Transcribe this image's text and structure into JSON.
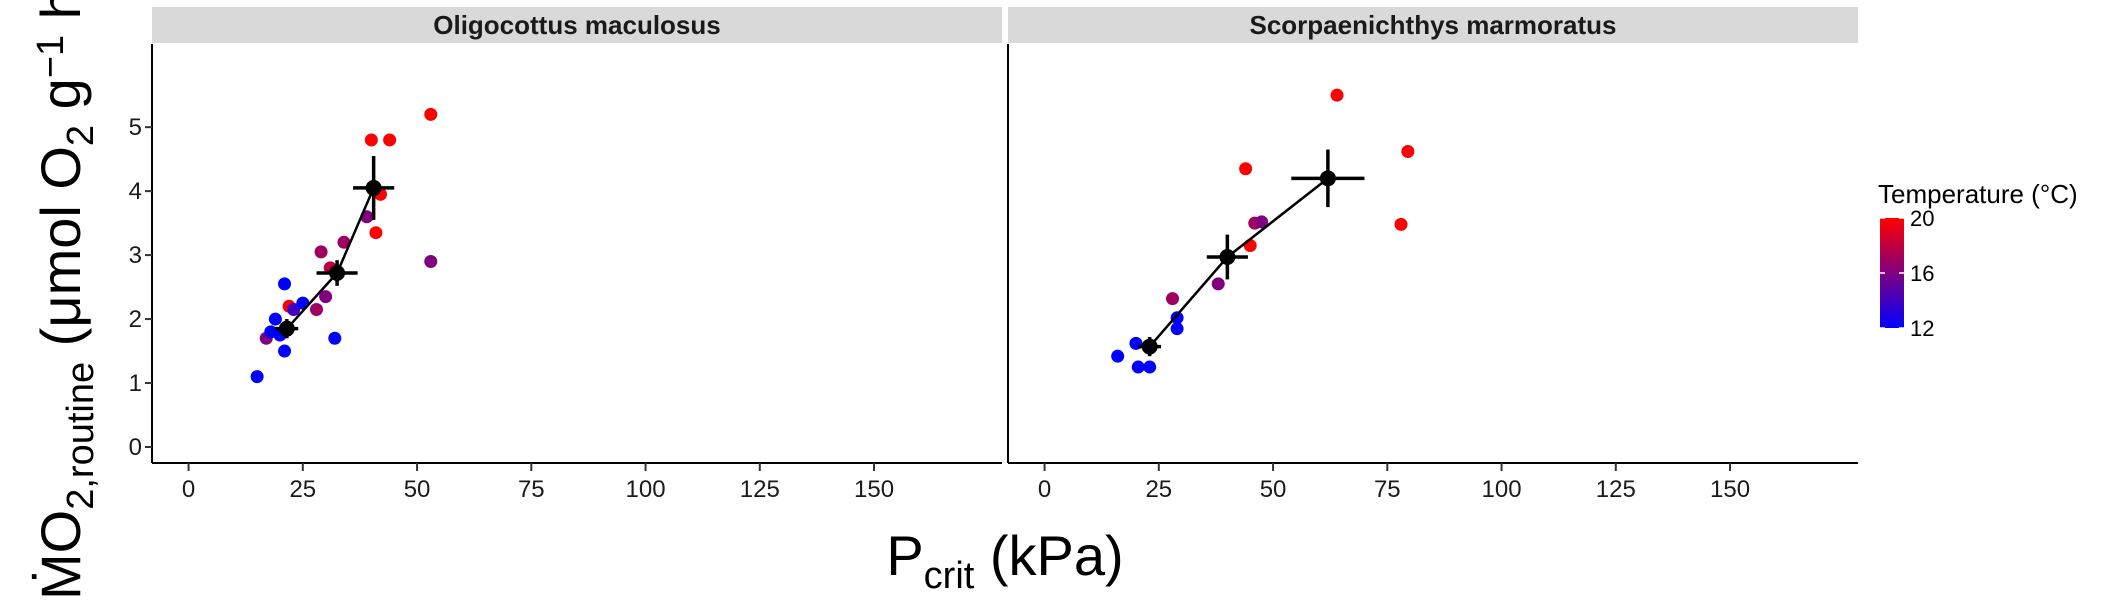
{
  "chart_data": {
    "type": "scatter",
    "x_axis": {
      "label_main": "P",
      "label_sub": "crit",
      "label_unit": " (kPa)",
      "ticks": [
        0,
        25,
        50,
        75,
        100,
        125,
        150
      ],
      "range": [
        -8,
        178
      ]
    },
    "y_axis": {
      "label_prefix": "ṀO",
      "label_sub": "2,routine",
      "label_rest": " (μmol O",
      "label_rest_sub": "2",
      "label_g": " g",
      "label_sup": "−1",
      "label_tail": " h",
      "ticks": [
        0,
        1,
        2,
        3,
        4,
        5
      ],
      "range": [
        -0.25,
        6.3
      ]
    },
    "legend": {
      "title": "Temperature (°C)",
      "min": 12,
      "max": 20,
      "ticks": [
        12,
        16,
        20
      ],
      "color_low": "#0000ff",
      "color_high": "#ff0000"
    },
    "panels": [
      {
        "title": "Oligocottus maculosus",
        "points": [
          {
            "x": 15,
            "y": 1.1,
            "t": 12
          },
          {
            "x": 17,
            "y": 1.7,
            "t": 16
          },
          {
            "x": 18,
            "y": 1.8,
            "t": 12
          },
          {
            "x": 19,
            "y": 2.0,
            "t": 12
          },
          {
            "x": 20,
            "y": 1.75,
            "t": 12
          },
          {
            "x": 21,
            "y": 2.55,
            "t": 12
          },
          {
            "x": 21,
            "y": 1.5,
            "t": 12
          },
          {
            "x": 22,
            "y": 2.2,
            "t": 20
          },
          {
            "x": 23,
            "y": 2.15,
            "t": 14
          },
          {
            "x": 25,
            "y": 2.25,
            "t": 12
          },
          {
            "x": 28,
            "y": 2.15,
            "t": 17
          },
          {
            "x": 29,
            "y": 3.05,
            "t": 17
          },
          {
            "x": 30,
            "y": 2.35,
            "t": 16
          },
          {
            "x": 31,
            "y": 2.8,
            "t": 18
          },
          {
            "x": 32,
            "y": 1.7,
            "t": 12
          },
          {
            "x": 34,
            "y": 3.2,
            "t": 17
          },
          {
            "x": 39,
            "y": 3.6,
            "t": 16
          },
          {
            "x": 40,
            "y": 4.8,
            "t": 20
          },
          {
            "x": 41,
            "y": 3.35,
            "t": 20
          },
          {
            "x": 42,
            "y": 3.95,
            "t": 20
          },
          {
            "x": 44,
            "y": 4.8,
            "t": 20
          },
          {
            "x": 53,
            "y": 2.9,
            "t": 16
          },
          {
            "x": 53,
            "y": 5.2,
            "t": 20
          }
        ],
        "means": [
          {
            "x": 21.5,
            "y": 1.85,
            "xerr": 2.5,
            "yerr": 0.15
          },
          {
            "x": 32.5,
            "y": 2.72,
            "xerr": 4.5,
            "yerr": 0.2
          },
          {
            "x": 40.5,
            "y": 4.05,
            "xerr": 4.5,
            "yerr": 0.5
          }
        ]
      },
      {
        "title": "Scorpaenichthys marmoratus",
        "points": [
          {
            "x": 16,
            "y": 1.42,
            "t": 12
          },
          {
            "x": 20,
            "y": 1.62,
            "t": 12
          },
          {
            "x": 20.5,
            "y": 1.25,
            "t": 12
          },
          {
            "x": 23,
            "y": 1.25,
            "t": 12
          },
          {
            "x": 28,
            "y": 2.32,
            "t": 17
          },
          {
            "x": 29,
            "y": 2.02,
            "t": 12
          },
          {
            "x": 29,
            "y": 1.85,
            "t": 12
          },
          {
            "x": 38,
            "y": 2.55,
            "t": 16
          },
          {
            "x": 44,
            "y": 4.35,
            "t": 20
          },
          {
            "x": 45,
            "y": 3.15,
            "t": 20
          },
          {
            "x": 46,
            "y": 3.5,
            "t": 17
          },
          {
            "x": 47.5,
            "y": 3.52,
            "t": 16
          },
          {
            "x": 64,
            "y": 5.5,
            "t": 20
          },
          {
            "x": 78,
            "y": 3.48,
            "t": 20
          },
          {
            "x": 79.5,
            "y": 4.62,
            "t": 20
          }
        ],
        "means": [
          {
            "x": 23,
            "y": 1.57,
            "xerr": 2.5,
            "yerr": 0.15
          },
          {
            "x": 40,
            "y": 2.97,
            "xerr": 4.5,
            "yerr": 0.35
          },
          {
            "x": 62,
            "y": 4.2,
            "xerr": 8,
            "yerr": 0.45
          }
        ]
      }
    ]
  }
}
